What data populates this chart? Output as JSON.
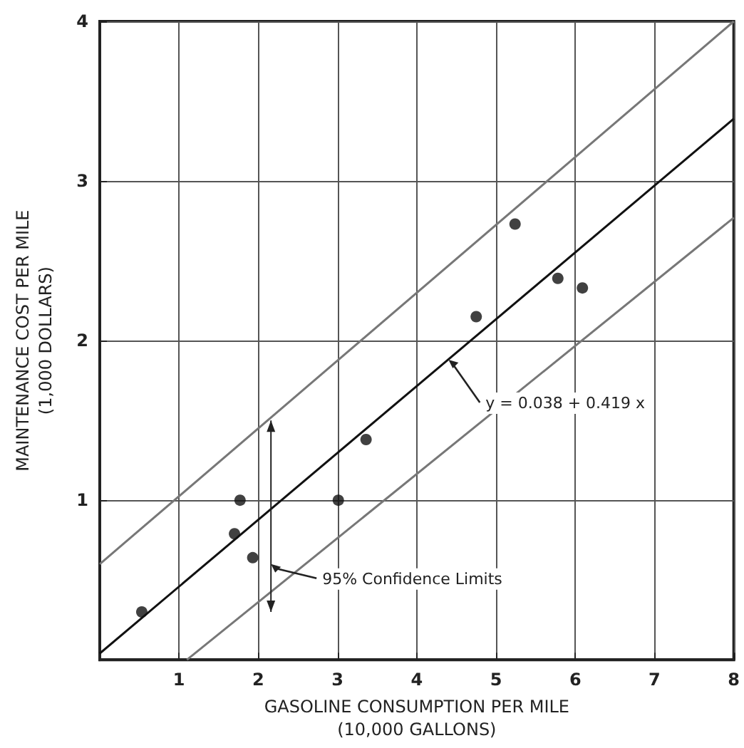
{
  "chart_data": {
    "type": "scatter",
    "xlabel": "GASOLINE CONSUMPTION PER MILE\n(10,000 GALLONS)",
    "ylabel": "MAINTENANCE COST PER MILE\n(1,000 DOLLARS)",
    "xlim": [
      0,
      8
    ],
    "ylim": [
      0,
      4
    ],
    "xticks": [
      1,
      2,
      3,
      4,
      5,
      6,
      7,
      8
    ],
    "yticks": [
      1,
      2,
      3,
      4
    ],
    "grid": true,
    "marker": "circle",
    "series": [
      {
        "color": "#111111",
        "x": [
          0.53,
          1.77,
          1.7,
          1.93,
          3.01,
          3.36,
          4.75,
          5.24,
          5.78,
          6.09
        ],
        "values": [
          0.3,
          1.0,
          0.79,
          0.64,
          1.0,
          1.38,
          2.15,
          2.73,
          2.39,
          2.33
        ]
      },
      {
        "type": "line",
        "color": "#111111",
        "marker": "none",
        "x": [
          0,
          8
        ],
        "values": [
          0.04,
          3.39
        ]
      },
      {
        "type": "line",
        "color": "#777777",
        "marker": "none",
        "x": [
          0,
          8
        ],
        "values": [
          0.6,
          4.0
        ]
      },
      {
        "type": "line",
        "color": "#777777",
        "marker": "none",
        "x": [
          1.1,
          8
        ],
        "values": [
          0,
          2.77
        ]
      }
    ],
    "annotations": [
      {
        "text": "y = 0.038 + 0.419 x",
        "x": 4.4,
        "y": 1.88
      },
      "95% Confidence Limits"
    ]
  }
}
